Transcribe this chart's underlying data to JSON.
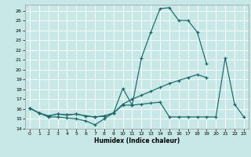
{
  "xlabel": "Humidex (Indice chaleur)",
  "xlim": [
    -0.5,
    23.5
  ],
  "ylim": [
    14,
    26.6
  ],
  "yticks": [
    14,
    15,
    16,
    17,
    18,
    19,
    20,
    21,
    22,
    23,
    24,
    25,
    26
  ],
  "xticks": [
    0,
    1,
    2,
    3,
    4,
    5,
    6,
    7,
    8,
    9,
    10,
    11,
    12,
    13,
    14,
    15,
    16,
    17,
    18,
    19,
    20,
    21,
    22,
    23
  ],
  "bg_color": "#c8e8e8",
  "line_color": "#1a6868",
  "line1_y": [
    16.1,
    15.6,
    15.2,
    15.2,
    15.1,
    15.0,
    14.8,
    14.4,
    15.0,
    15.6,
    18.1,
    16.4,
    21.2,
    23.8,
    26.2,
    26.3,
    25.0,
    25.0,
    23.8,
    20.6,
    null,
    null,
    null,
    null
  ],
  "line2_y": [
    16.1,
    15.6,
    15.3,
    15.5,
    15.4,
    15.5,
    15.3,
    15.2,
    15.3,
    15.6,
    16.5,
    17.0,
    17.4,
    17.8,
    18.2,
    18.6,
    18.9,
    19.2,
    19.5,
    19.2,
    null,
    null,
    null,
    null
  ],
  "line3_y": [
    16.1,
    15.6,
    15.3,
    15.5,
    15.4,
    15.5,
    15.3,
    15.2,
    15.3,
    15.6,
    16.4,
    16.4,
    16.5,
    16.6,
    16.7,
    15.2,
    15.2,
    15.2,
    15.2,
    15.2,
    15.2,
    21.2,
    16.5,
    15.2
  ]
}
